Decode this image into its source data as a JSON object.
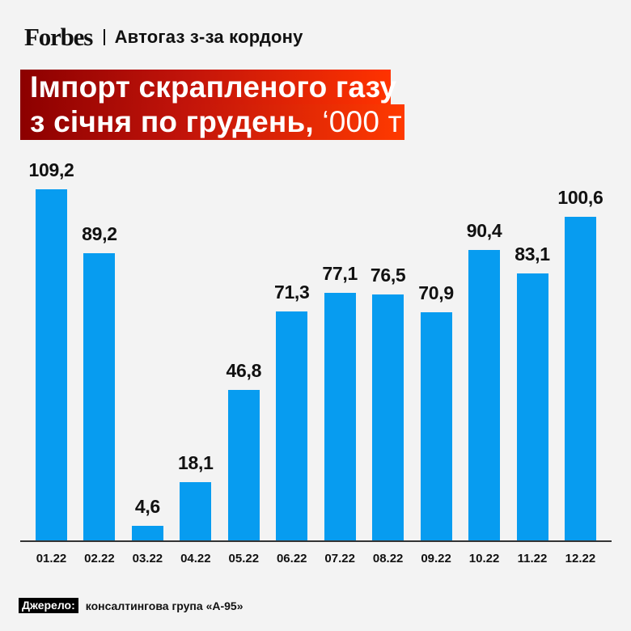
{
  "header": {
    "brand": "Forbes",
    "section": "Автогаз з-за кордону"
  },
  "title": {
    "line1": "Імпорт скрапленого газу",
    "line2_bold": "з січня по грудень,",
    "line2_light": " ‘000 т"
  },
  "colors": {
    "bar": "#079cf0",
    "title_gradient_start": "#8c0000",
    "title_gradient_end": "#ff3300",
    "background": "#f3f3f3"
  },
  "chart_data": {
    "type": "bar",
    "title": "Імпорт скрапленого газу з січня по грудень, ‘000 т",
    "categories": [
      "01.22",
      "02.22",
      "03.22",
      "04.22",
      "05.22",
      "06.22",
      "07.22",
      "08.22",
      "09.22",
      "10.22",
      "11.22",
      "12.22"
    ],
    "values": [
      109.2,
      89.2,
      4.6,
      18.1,
      46.8,
      71.3,
      77.1,
      76.5,
      70.9,
      90.4,
      83.1,
      100.6
    ],
    "value_labels": [
      "109,2",
      "89,2",
      "4,6",
      "18,1",
      "46,8",
      "71,3",
      "77,1",
      "76,5",
      "70,9",
      "90,4",
      "83,1",
      "100,6"
    ],
    "xlabel": "",
    "ylabel": "",
    "ylim": [
      0,
      110
    ],
    "grid": false,
    "legend": "none"
  },
  "source": {
    "label": "Джерело:",
    "text": "консалтингова група «А-95»"
  }
}
